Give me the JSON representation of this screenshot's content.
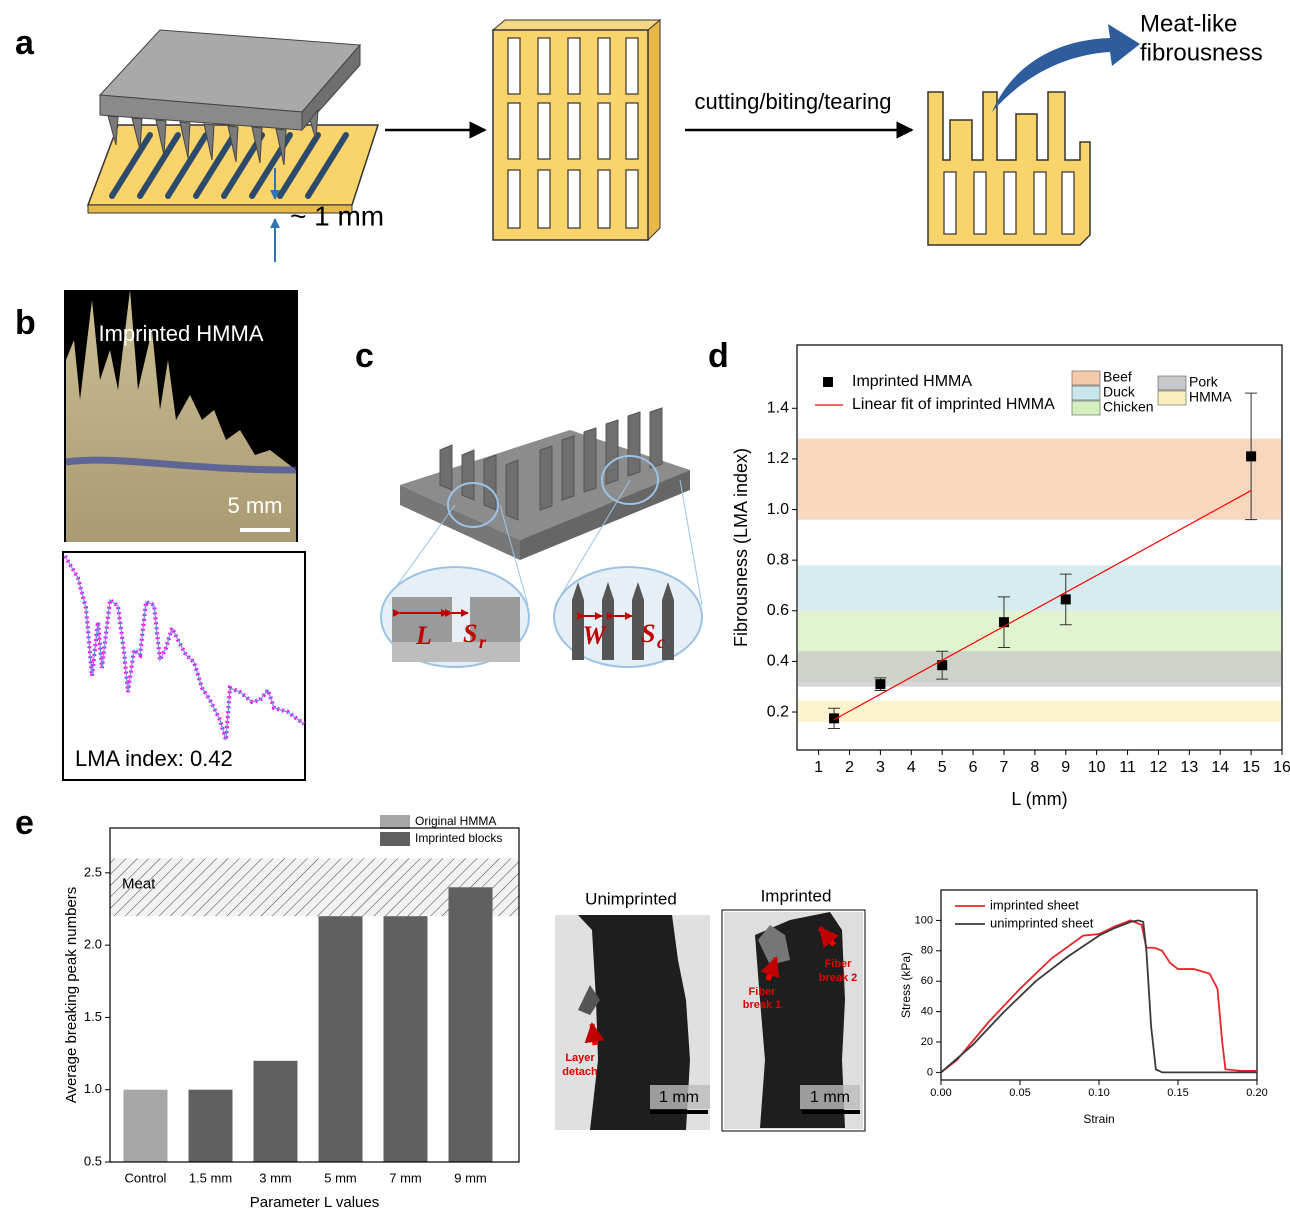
{
  "panels": {
    "a": "a",
    "b": "b",
    "c": "c",
    "d": "d",
    "e": "e"
  },
  "panel_a": {
    "thickness": "~ 1 mm",
    "process": "cutting/biting/tearing",
    "result": [
      "Meat-like",
      "fibrousness"
    ]
  },
  "panel_b": {
    "title": "Imprinted HMMA",
    "scale_bar": "5 mm",
    "index": "LMA index: 0.42"
  },
  "panel_c": {
    "L": "L",
    "Sr": "S",
    "Sr_sub": "r",
    "W": "W",
    "Sc": "S",
    "Sc_sub": "c"
  },
  "images": {
    "unimprinted": "Unimprinted",
    "imprinted": "Imprinted",
    "layer": [
      "Layer",
      "detach"
    ],
    "fiber1": [
      "Fiber",
      "break 1"
    ],
    "fiber2": [
      "Fiber",
      "break 2"
    ],
    "scale": "1 mm"
  },
  "chart_data": [
    {
      "type": "scatter",
      "x_label": "L (mm)",
      "y_label": "Fibrousness (LMA index)",
      "xlim": [
        0.3,
        16
      ],
      "xticks": [
        1,
        2,
        3,
        4,
        5,
        6,
        7,
        8,
        9,
        10,
        11,
        12,
        13,
        14,
        15,
        16
      ],
      "ylim": [
        0.05,
        1.65
      ],
      "yticks": [
        0.2,
        0.4,
        0.6,
        0.8,
        {
          "value": 1,
          "label": "1.0"
        },
        1.2,
        1.4
      ],
      "series": [
        {
          "name": "Imprinted HMMA",
          "color": "#000000",
          "x": [
            1.5,
            3,
            5,
            7,
            9,
            15
          ],
          "values": [
            0.175,
            0.31,
            0.385,
            0.555,
            0.645,
            1.21
          ],
          "errors": [
            0.04,
            0.025,
            0.055,
            0.1,
            0.1,
            0.25
          ]
        },
        {
          "name": "Linear fit of imprinted HMMA",
          "color": "#ff0000",
          "x": [
            1.5,
            15
          ],
          "values": [
            0.17,
            1.075
          ]
        }
      ],
      "bands": [
        {
          "name": "Beef",
          "color": "#f6caa9",
          "range": [
            0.96,
            1.28
          ]
        },
        {
          "name": "Duck",
          "color": "#c9e6ea",
          "range": [
            0.6,
            0.78
          ]
        },
        {
          "name": "Chicken",
          "color": "#d5f0c0",
          "range": [
            0.32,
            0.6
          ]
        },
        {
          "name": "Pork",
          "color": "#c8c8c8",
          "range": [
            0.3,
            0.44
          ]
        },
        {
          "name": "HMMA",
          "color": "#f9f0bd",
          "range": [
            0.16,
            0.245
          ]
        }
      ]
    },
    {
      "type": "bar",
      "x_label": "Parameter L values",
      "y_label": "Average breaking peak numbers",
      "categories": [
        "Control",
        "1.5 mm",
        "3 mm",
        "5 mm",
        "7 mm",
        "9 mm"
      ],
      "ylim": [
        0.5,
        2.81
      ],
      "yticks": [
        0.5,
        {
          "value": 1,
          "label": "1.0"
        },
        1.5,
        {
          "value": 2,
          "label": "2.0"
        },
        2.5
      ],
      "series": [
        {
          "name": "Original HMMA",
          "color": "#a6a6a6",
          "values": [
            1.0,
            null,
            null,
            null,
            null,
            null
          ]
        },
        {
          "name": "Imprinted blocks",
          "color": "#606060",
          "values": [
            null,
            1.0,
            1.2,
            2.2,
            2.2,
            2.4
          ]
        }
      ],
      "band": {
        "name": "Meat",
        "range": [
          2.2,
          2.6
        ]
      }
    },
    {
      "type": "line",
      "x_label": "Strain",
      "y_label": "Stress (kPa)",
      "xlim": [
        0,
        0.2
      ],
      "xticks": [
        {
          "value": 0,
          "label": "0.00"
        },
        0.05,
        {
          "value": 0.1,
          "label": "0.10"
        },
        0.15,
        {
          "value": 0.2,
          "label": "0.20"
        }
      ],
      "ylim": [
        -5,
        120
      ],
      "yticks": [
        0,
        20,
        40,
        60,
        80,
        100
      ],
      "series": [
        {
          "name": "imprinted sheet",
          "color": "#e8262a",
          "x": [
            0,
            0.01,
            0.03,
            0.05,
            0.07,
            0.09,
            0.1,
            0.11,
            0.12,
            0.127,
            0.13,
            0.135,
            0.14,
            0.145,
            0.15,
            0.16,
            0.17,
            0.175,
            0.178,
            0.18,
            0.19,
            0.2
          ],
          "values": [
            0,
            8,
            33,
            55,
            75,
            90,
            91,
            96,
            100,
            97,
            82,
            82,
            80,
            72,
            68,
            68,
            65,
            55,
            20,
            2,
            1,
            1
          ]
        },
        {
          "name": "unimprinted sheet",
          "color": "#3a3a3a",
          "x": [
            0,
            0.02,
            0.04,
            0.06,
            0.08,
            0.1,
            0.11,
            0.12,
            0.125,
            0.128,
            0.13,
            0.133,
            0.136,
            0.14,
            0.16,
            0.2
          ],
          "values": [
            0,
            18,
            40,
            60,
            76,
            90,
            95,
            99,
            100,
            99,
            80,
            30,
            2,
            0,
            0,
            0
          ]
        }
      ]
    }
  ]
}
